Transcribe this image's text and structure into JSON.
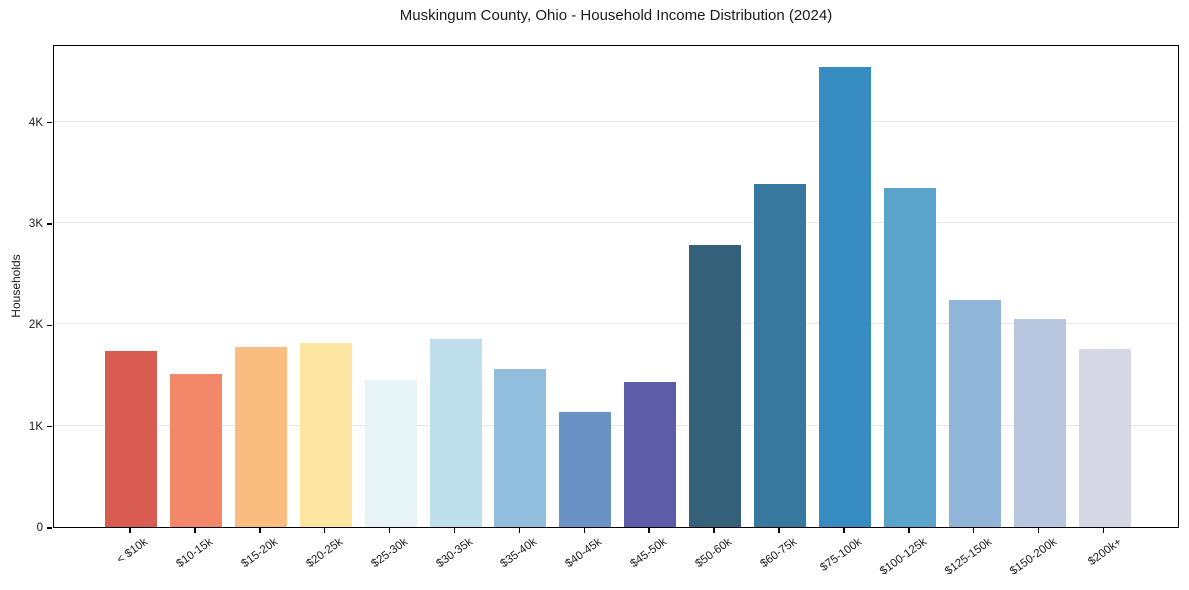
{
  "chart_data": {
    "type": "bar",
    "title": "Muskingum County, Ohio - Household Income Distribution (2024)",
    "xlabel": "",
    "ylabel": "Households",
    "categories": [
      "< $10k",
      "$10-15k",
      "$15-20k",
      "$20-25k",
      "$25-30k",
      "$30-35k",
      "$35-40k",
      "$40-45k",
      "$45-50k",
      "$50-60k",
      "$60-75k",
      "$75-100k",
      "$100-125k",
      "$125-150k",
      "$150-200k",
      "$200k+"
    ],
    "values": [
      1740,
      1510,
      1775,
      1815,
      1450,
      1850,
      1560,
      1135,
      1430,
      2780,
      3385,
      4540,
      3340,
      2240,
      2050,
      1760
    ],
    "bar_colors": [
      "#d85c52",
      "#f2876a",
      "#fabc7f",
      "#fde5a2",
      "#e6f3f7",
      "#bfdfec",
      "#92bedd",
      "#6b92c4",
      "#5c5ca8",
      "#34607a",
      "#37789f",
      "#368bc1",
      "#5aa3cb",
      "#91b5d8",
      "#b7c7e0",
      "#d5d7e5"
    ],
    "ylim": [
      0,
      4765
    ],
    "yticks": [
      {
        "value": 0,
        "label": "0"
      },
      {
        "value": 1000,
        "label": "1K"
      },
      {
        "value": 2000,
        "label": "2K"
      },
      {
        "value": 3000,
        "label": "3K"
      },
      {
        "value": 4000,
        "label": "4K"
      }
    ],
    "grid": "horizontal gridlines at y ticks",
    "grid_color": "#e6e6e6",
    "axis_color": "#000000",
    "text_color": "#1a1a1a",
    "background": "#ffffff",
    "legend": "none"
  }
}
